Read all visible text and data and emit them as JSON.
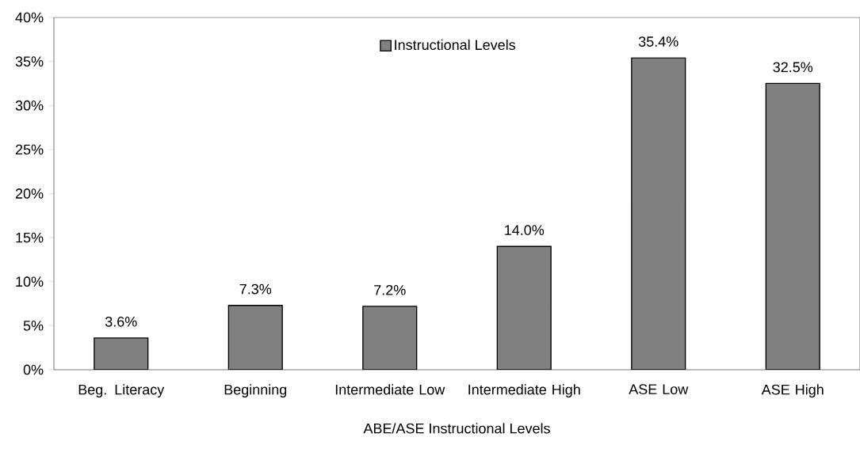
{
  "chart_data": {
    "type": "bar",
    "xlabel": "ABE/ASE Instructional Levels",
    "categories": [
      "Beg. Literacy",
      "Beginning",
      "Intermediate Low",
      "Intermediate High",
      "ASE Low",
      "ASE High"
    ],
    "series": [
      {
        "name": "Instructional Levels",
        "color": "#808080",
        "values": [
          3.6,
          7.3,
          7.2,
          14.0,
          35.4,
          32.5
        ],
        "value_labels": [
          "3.6%",
          "7.3%",
          "7.2%",
          "14.0%",
          "35.4%",
          "32.5%"
        ]
      }
    ],
    "ylim": [
      0,
      40
    ],
    "yticks": [
      {
        "value": 0,
        "label": "0%"
      },
      {
        "value": 5,
        "label": "5%"
      },
      {
        "value": 10,
        "label": "10%"
      },
      {
        "value": 15,
        "label": "15%"
      },
      {
        "value": 20,
        "label": "20%"
      },
      {
        "value": 25,
        "label": "25%"
      },
      {
        "value": 30,
        "label": "30%"
      },
      {
        "value": 35,
        "label": "35%"
      },
      {
        "value": 40,
        "label": "40%"
      }
    ],
    "legend": "top",
    "grid": false
  }
}
